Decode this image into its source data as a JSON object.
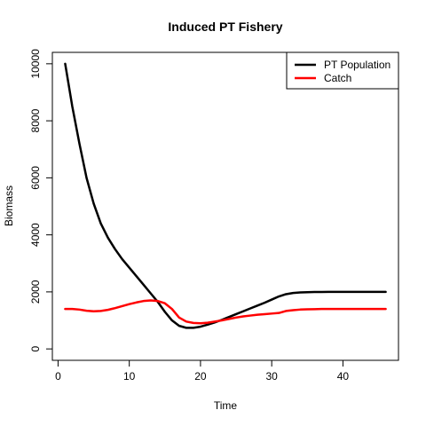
{
  "chart_data": {
    "type": "line",
    "title": "Induced PT Fishery",
    "xlabel": "Time",
    "ylabel": "Biomass",
    "xlim": [
      -0.8,
      47.8
    ],
    "ylim": [
      -400,
      10400
    ],
    "xticks": [
      0,
      10,
      20,
      30,
      40
    ],
    "yticks": [
      0,
      2000,
      4000,
      6000,
      8000,
      10000
    ],
    "legend_position": "top-right",
    "series": [
      {
        "name": "PT Population",
        "color": "#000000",
        "x": [
          1,
          2,
          3,
          4,
          5,
          6,
          7,
          8,
          9,
          10,
          11,
          12,
          13,
          14,
          15,
          16,
          17,
          18,
          19,
          20,
          21,
          22,
          23,
          24,
          25,
          26,
          27,
          28,
          29,
          30,
          31,
          32,
          33,
          34,
          35,
          36,
          37,
          38,
          39,
          40,
          41,
          42,
          43,
          44,
          45,
          46
        ],
        "values": [
          10000,
          8500,
          7200,
          6000,
          5100,
          4400,
          3900,
          3500,
          3150,
          2850,
          2550,
          2250,
          1950,
          1650,
          1300,
          1000,
          810,
          740,
          740,
          780,
          850,
          930,
          1020,
          1120,
          1220,
          1320,
          1420,
          1520,
          1620,
          1730,
          1840,
          1920,
          1960,
          1980,
          1990,
          1995,
          1998,
          2000,
          2000,
          2000,
          2000,
          2000,
          2000,
          2000,
          2000,
          2000
        ]
      },
      {
        "name": "Catch",
        "color": "#ff0000",
        "x": [
          1,
          2,
          3,
          4,
          5,
          6,
          7,
          8,
          9,
          10,
          11,
          12,
          13,
          14,
          15,
          16,
          17,
          18,
          19,
          20,
          21,
          22,
          23,
          24,
          25,
          26,
          27,
          28,
          29,
          30,
          31,
          32,
          33,
          34,
          35,
          36,
          37,
          38,
          39,
          40,
          41,
          42,
          43,
          44,
          45,
          46
        ],
        "values": [
          1400,
          1400,
          1380,
          1340,
          1320,
          1330,
          1370,
          1430,
          1500,
          1570,
          1630,
          1680,
          1700,
          1680,
          1600,
          1400,
          1100,
          960,
          910,
          900,
          920,
          960,
          1000,
          1050,
          1100,
          1140,
          1170,
          1200,
          1220,
          1240,
          1260,
          1330,
          1360,
          1380,
          1390,
          1395,
          1400,
          1400,
          1400,
          1400,
          1400,
          1400,
          1400,
          1400,
          1400,
          1400
        ]
      }
    ]
  }
}
